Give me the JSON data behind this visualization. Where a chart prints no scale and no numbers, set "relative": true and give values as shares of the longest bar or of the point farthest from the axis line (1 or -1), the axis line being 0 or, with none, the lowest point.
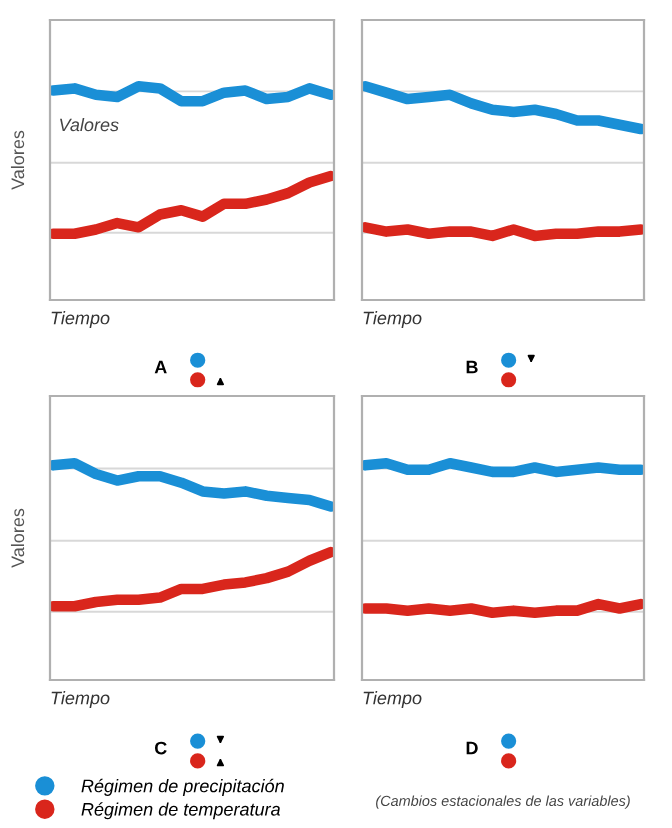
{
  "chart_data": [
    {
      "type": "line",
      "relative": true,
      "ylabel": "Valores",
      "xlabel": "Tiempo",
      "annotations": [
        "A",
        "Valores"
      ],
      "grid": "y",
      "tick_labels": false,
      "marker": "none",
      "line_style": "solid",
      "categories": [
        null,
        null,
        null,
        null,
        null,
        null,
        null,
        null,
        null,
        null,
        null,
        null,
        null,
        null
      ],
      "series": [
        {
          "color": "#1a8fd6",
          "values": [
            0.98,
            0.99,
            0.96,
            0.95,
            1.0,
            0.99,
            0.93,
            0.93,
            0.97,
            0.98,
            0.94,
            0.95,
            0.99,
            0.96
          ]
        },
        {
          "color": "#d9261c",
          "values": [
            0.31,
            0.31,
            0.33,
            0.36,
            0.34,
            0.4,
            0.42,
            0.39,
            0.45,
            0.45,
            0.47,
            0.5,
            0.55,
            0.58
          ]
        }
      ]
    },
    {
      "type": "line",
      "relative": true,
      "xlabel": "Tiempo",
      "annotations": [
        "B"
      ],
      "grid": "y",
      "tick_labels": false,
      "marker": "none",
      "line_style": "solid",
      "categories": [
        null,
        null,
        null,
        null,
        null,
        null,
        null,
        null,
        null,
        null,
        null,
        null,
        null,
        null
      ],
      "series": [
        {
          "color": "#1a8fd6",
          "values": [
            1.0,
            0.97,
            0.94,
            0.95,
            0.96,
            0.92,
            0.89,
            0.88,
            0.89,
            0.87,
            0.84,
            0.84,
            0.82,
            0.8
          ]
        },
        {
          "color": "#d9261c",
          "values": [
            0.34,
            0.32,
            0.33,
            0.31,
            0.32,
            0.32,
            0.3,
            0.33,
            0.3,
            0.31,
            0.31,
            0.32,
            0.32,
            0.33
          ]
        }
      ]
    },
    {
      "type": "line",
      "relative": true,
      "ylabel": "Valores",
      "xlabel": "Tiempo",
      "annotations": [
        "C"
      ],
      "grid": "y",
      "tick_labels": false,
      "marker": "none",
      "line_style": "solid",
      "legend": "bottom",
      "categories": [
        null,
        null,
        null,
        null,
        null,
        null,
        null,
        null,
        null,
        null,
        null,
        null,
        null,
        null
      ],
      "series": [
        {
          "name": "Régimen de precipitación",
          "color": "#1a8fd6",
          "values": [
            0.99,
            1.0,
            0.95,
            0.92,
            0.94,
            0.94,
            0.91,
            0.87,
            0.86,
            0.87,
            0.85,
            0.84,
            0.83,
            0.8
          ]
        },
        {
          "name": "Régimen de temperatura",
          "color": "#d9261c",
          "values": [
            0.34,
            0.34,
            0.36,
            0.37,
            0.37,
            0.38,
            0.42,
            0.42,
            0.44,
            0.45,
            0.47,
            0.5,
            0.55,
            0.59
          ]
        }
      ]
    },
    {
      "type": "line",
      "relative": true,
      "xlabel": "Tiempo",
      "annotations": [
        "D",
        "(Cambios estacionales de las variables)"
      ],
      "grid": "y",
      "tick_labels": false,
      "marker": "none",
      "line_style": "solid",
      "categories": [
        null,
        null,
        null,
        null,
        null,
        null,
        null,
        null,
        null,
        null,
        null,
        null,
        null,
        null
      ],
      "series": [
        {
          "color": "#1a8fd6",
          "values": [
            0.99,
            1.0,
            0.97,
            0.97,
            1.0,
            0.98,
            0.96,
            0.96,
            0.98,
            0.96,
            0.97,
            0.98,
            0.97,
            0.97
          ]
        },
        {
          "color": "#d9261c",
          "values": [
            0.33,
            0.33,
            0.32,
            0.33,
            0.32,
            0.33,
            0.31,
            0.32,
            0.31,
            0.32,
            0.32,
            0.35,
            0.33,
            0.35
          ]
        }
      ]
    }
  ]
}
